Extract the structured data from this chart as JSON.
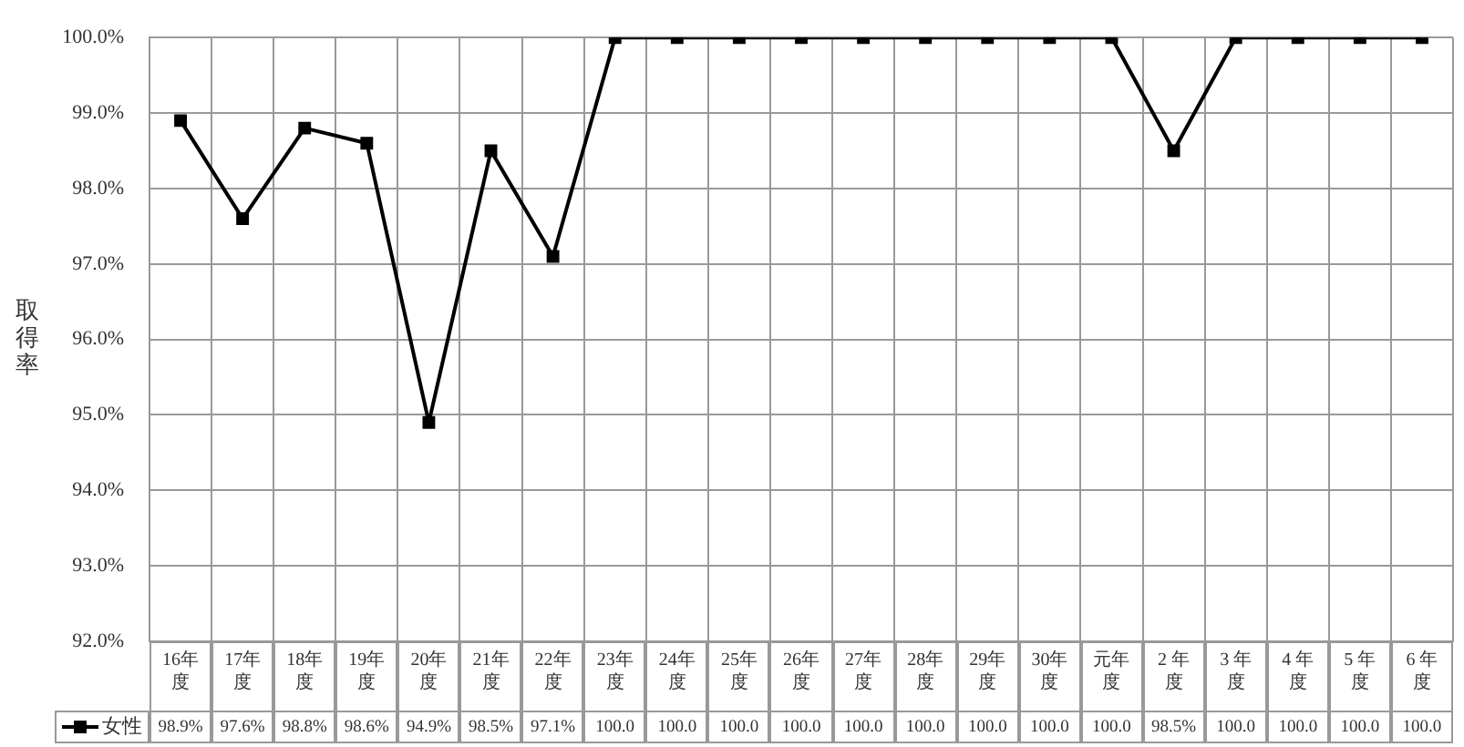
{
  "chart_data": {
    "type": "line",
    "ylabel": "取得率",
    "categories": [
      "16年度",
      "17年度",
      "18年度",
      "19年度",
      "20年度",
      "21年度",
      "22年度",
      "23年度",
      "24年度",
      "25年度",
      "26年度",
      "27年度",
      "28年度",
      "29年度",
      "30年度",
      "元年度",
      "2 年度",
      "3 年度",
      "4 年度",
      "5 年度",
      "6 年度"
    ],
    "series": [
      {
        "name": "女性",
        "color": "#000000",
        "values": [
          98.9,
          97.6,
          98.8,
          98.6,
          94.9,
          98.5,
          97.1,
          100.0,
          100.0,
          100.0,
          100.0,
          100.0,
          100.0,
          100.0,
          100.0,
          100.0,
          98.5,
          100.0,
          100.0,
          100.0,
          100.0
        ],
        "value_labels": [
          "98.9%",
          "97.6%",
          "98.8%",
          "98.6%",
          "94.9%",
          "98.5%",
          "97.1%",
          "100.0",
          "100.0",
          "100.0",
          "100.0",
          "100.0",
          "100.0",
          "100.0",
          "100.0",
          "100.0",
          "98.5%",
          "100.0",
          "100.0",
          "100.0",
          "100.0"
        ]
      }
    ],
    "ylim": [
      92,
      100
    ],
    "yticks": [
      {
        "value": 92,
        "label": "92.0%"
      },
      {
        "value": 93,
        "label": "93.0%"
      },
      {
        "value": 94,
        "label": "94.0%"
      },
      {
        "value": 95,
        "label": "95.0%"
      },
      {
        "value": 96,
        "label": "96.0%"
      },
      {
        "value": 97,
        "label": "97.0%"
      },
      {
        "value": 98,
        "label": "98.0%"
      },
      {
        "value": 99,
        "label": "99.0%"
      },
      {
        "value": 100,
        "label": "100.0%"
      }
    ],
    "grid": true,
    "marker": "square",
    "line_style": "solid",
    "legend": "bottom left"
  }
}
